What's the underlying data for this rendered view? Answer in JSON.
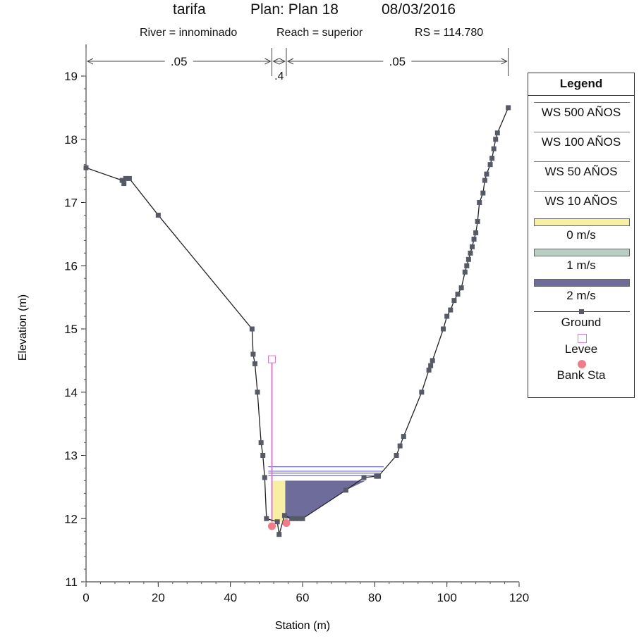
{
  "header": {
    "project": "tarifa",
    "plan": "Plan: Plan 18",
    "date": "08/03/2016",
    "river": "River = innominado",
    "reach": "Reach = superior",
    "rs": "RS = 114.780"
  },
  "manning": {
    "left": ".05",
    "channel": ".4",
    "right": ".05"
  },
  "legend": {
    "title": "Legend",
    "items": [
      {
        "label": "WS 500 AÑOS",
        "kind": "line",
        "color": "#6b6bd6"
      },
      {
        "label": "WS 100 AÑOS",
        "kind": "line",
        "color": "#6b6bd6"
      },
      {
        "label": "WS 50 AÑOS",
        "kind": "line",
        "color": "#6b6bd6"
      },
      {
        "label": "WS 10 AÑOS",
        "kind": "line",
        "color": "#6b6bd6"
      },
      {
        "label": "0 m/s",
        "kind": "swatch",
        "color": "#f7f0a2"
      },
      {
        "label": "1 m/s",
        "kind": "swatch",
        "color": "#b9cfc3"
      },
      {
        "label": "2 m/s",
        "kind": "swatch",
        "color": "#6e6c9a"
      },
      {
        "label": "Ground",
        "kind": "ground",
        "color": "#222222"
      },
      {
        "label": "Levee",
        "kind": "levee",
        "color": "#e07ad0"
      },
      {
        "label": "Bank Sta",
        "kind": "bank",
        "color": "#f07c8a"
      }
    ]
  },
  "chart_data": {
    "type": "line",
    "title": "tarifa Plan: Plan 18 08/03/2016",
    "xlabel": "Station (m)",
    "ylabel": "Elevation (m)",
    "xlim": [
      0,
      120
    ],
    "ylim": [
      11,
      19.5
    ],
    "xticks": [
      "0",
      "20",
      "40",
      "60",
      "80",
      "100",
      "120"
    ],
    "yticks": [
      "11",
      "12",
      "13",
      "14",
      "15",
      "16",
      "17",
      "18",
      "19"
    ],
    "ground": [
      [
        0,
        17.55
      ],
      [
        10,
        17.35
      ],
      [
        10.5,
        17.3
      ],
      [
        11,
        17.38
      ],
      [
        12,
        17.38
      ],
      [
        20,
        16.8
      ],
      [
        46,
        15.0
      ],
      [
        46.3,
        14.6
      ],
      [
        46.8,
        14.45
      ],
      [
        47.5,
        14.0
      ],
      [
        48.5,
        13.2
      ],
      [
        49,
        13.0
      ],
      [
        49.5,
        12.65
      ],
      [
        50,
        12.0
      ],
      [
        53,
        11.95
      ],
      [
        53.5,
        11.75
      ],
      [
        55,
        12.05
      ],
      [
        57,
        12.0
      ],
      [
        58,
        12.0
      ],
      [
        59,
        12.0
      ],
      [
        60,
        12.0
      ],
      [
        72,
        12.45
      ],
      [
        77,
        12.65
      ],
      [
        80.5,
        12.67
      ],
      [
        81,
        12.67
      ],
      [
        86,
        13.0
      ],
      [
        87,
        13.15
      ],
      [
        88,
        13.3
      ],
      [
        93,
        14.0
      ],
      [
        95,
        14.35
      ],
      [
        95.5,
        14.42
      ],
      [
        96,
        14.5
      ],
      [
        99,
        15.0
      ],
      [
        100,
        15.2
      ],
      [
        101,
        15.3
      ],
      [
        102,
        15.45
      ],
      [
        103,
        15.55
      ],
      [
        104,
        15.65
      ],
      [
        105,
        15.9
      ],
      [
        105.5,
        16.0
      ],
      [
        106,
        16.1
      ],
      [
        106.5,
        16.2
      ],
      [
        107,
        16.3
      ],
      [
        107.5,
        16.42
      ],
      [
        108,
        16.52
      ],
      [
        108.5,
        16.7
      ],
      [
        109,
        17.0
      ],
      [
        110,
        17.15
      ],
      [
        110.5,
        17.35
      ],
      [
        111,
        17.45
      ],
      [
        112,
        17.6
      ],
      [
        112.5,
        17.7
      ],
      [
        113,
        17.85
      ],
      [
        113.5,
        18.0
      ],
      [
        114,
        18.1
      ],
      [
        117,
        18.5
      ]
    ],
    "water_surfaces": [
      {
        "name": "WS 500 AÑOS",
        "elevation": 12.82,
        "x_range": [
          50.5,
          82.5
        ]
      },
      {
        "name": "WS 100 AÑOS",
        "elevation": 12.75,
        "x_range": [
          50.5,
          82.0
        ]
      },
      {
        "name": "WS 50 AÑOS",
        "elevation": 12.72,
        "x_range": [
          50.5,
          81.5
        ]
      },
      {
        "name": "WS 10 AÑOS",
        "elevation": 12.68,
        "x_range": [
          50.5,
          81.0
        ]
      }
    ],
    "velocity_fill": {
      "elevation": 12.6,
      "low_x_range": [
        51.5,
        55.2
      ],
      "high_x_range": [
        55.2,
        77.5
      ]
    },
    "levee": [
      [
        51.5,
        14.52
      ],
      [
        51.5,
        11.95
      ]
    ],
    "bank_stations": [
      [
        51.5,
        11.88
      ],
      [
        55.5,
        11.93
      ]
    ],
    "manning_breaks": [
      51.5,
      55.5
    ]
  }
}
